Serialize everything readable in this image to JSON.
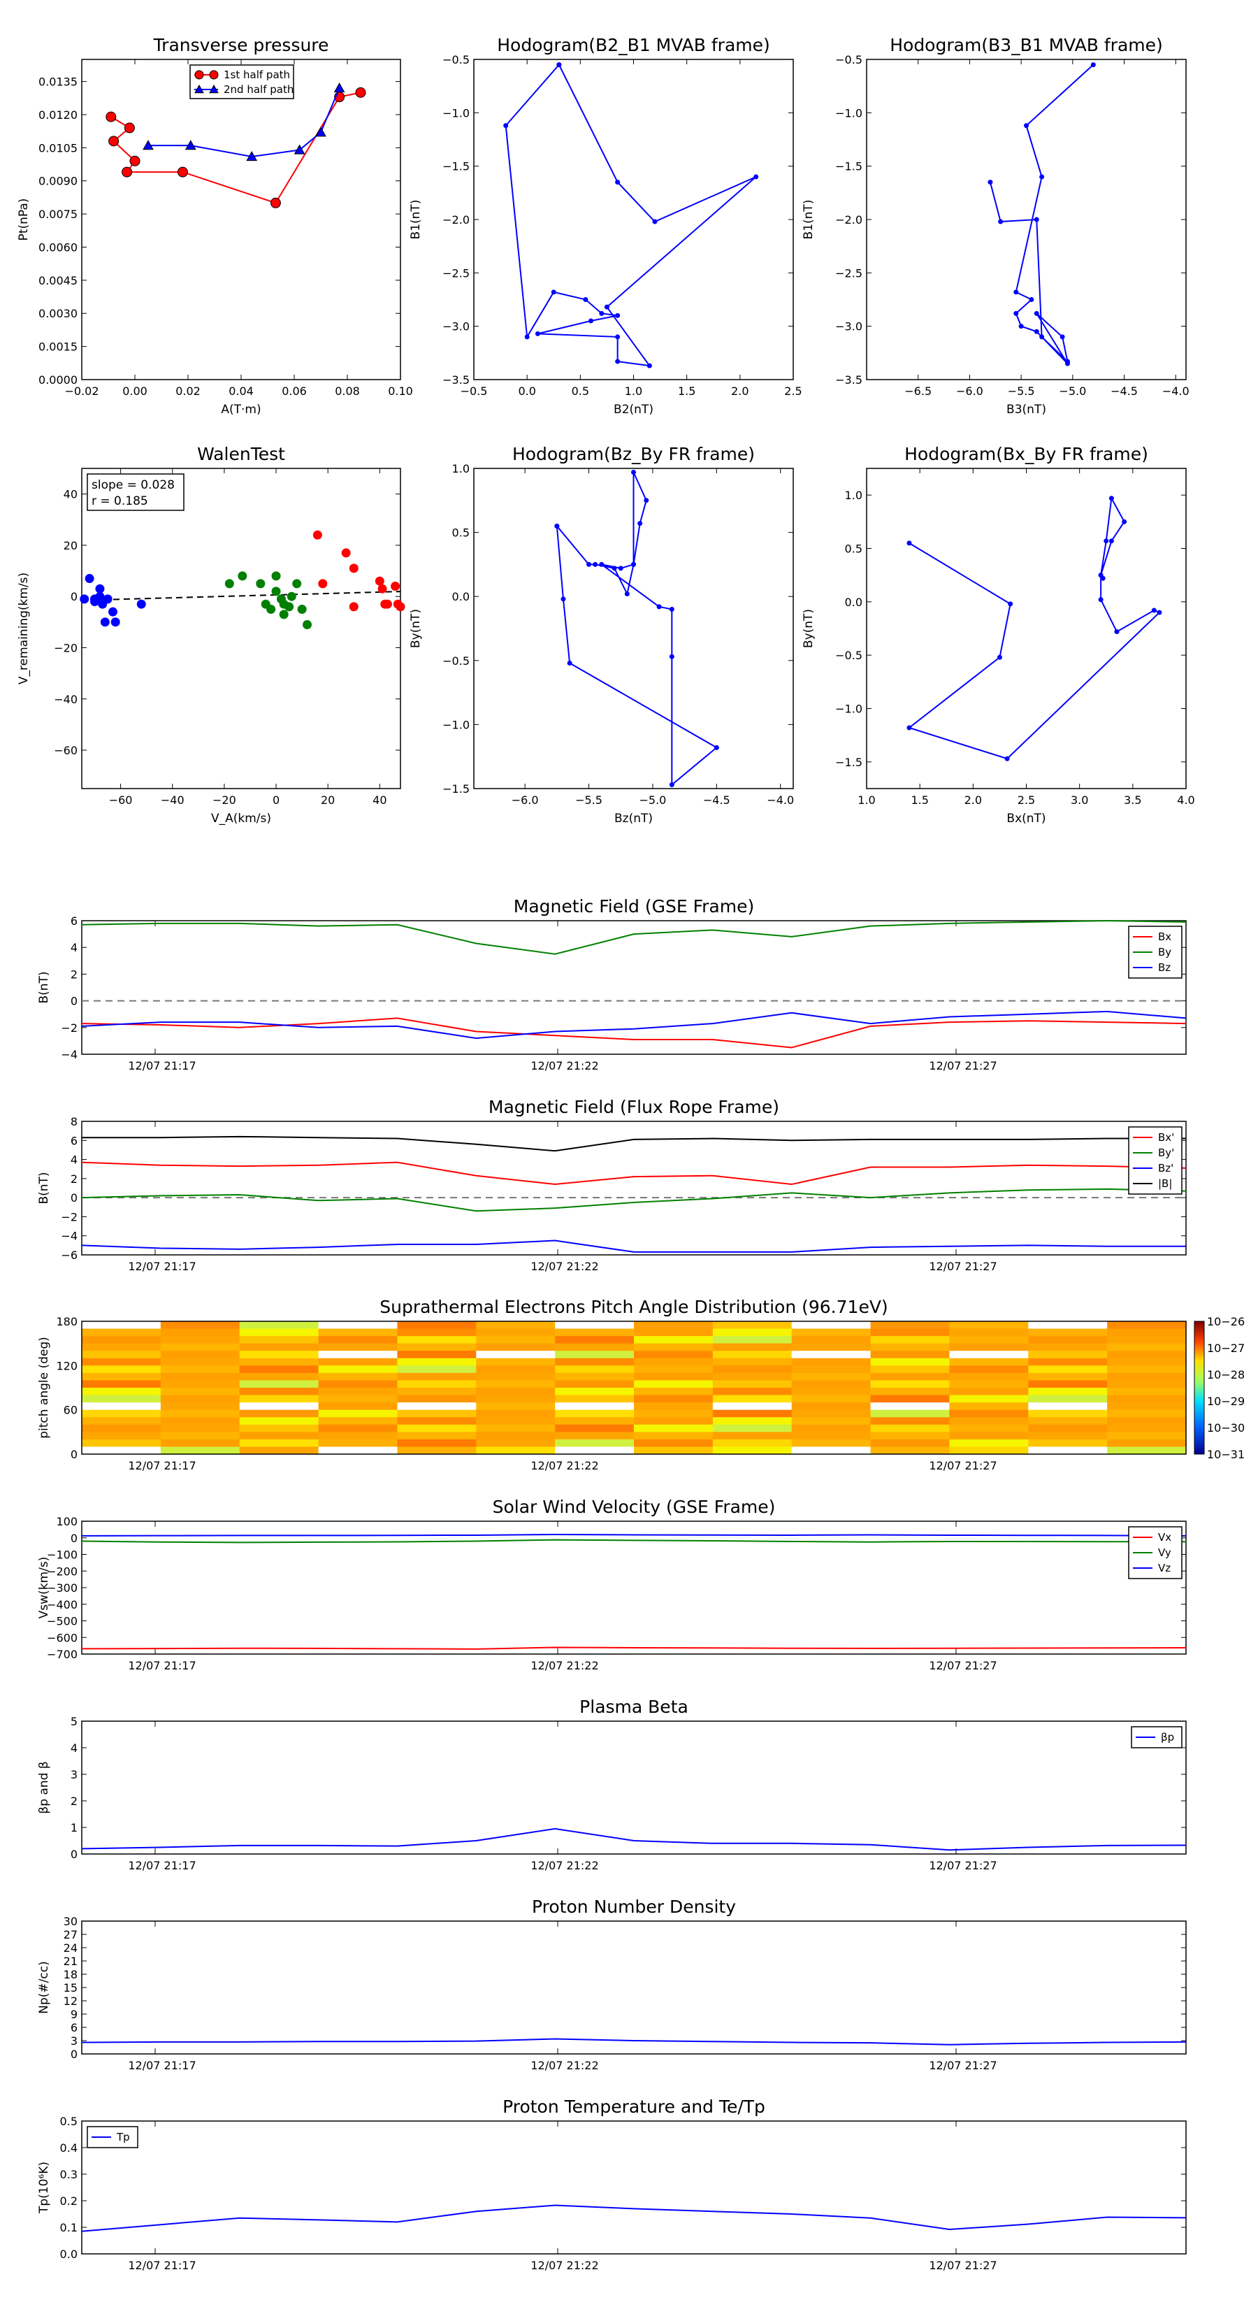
{
  "chart_data": [
    {
      "type": "line",
      "title": "Transverse pressure",
      "xlabel": "A(T·m)",
      "ylabel": "Pt(nPa)",
      "xlim": [
        -0.02,
        0.1
      ],
      "ylim": [
        0.0,
        0.0145
      ],
      "xticks": [
        "−0.02",
        "0.00",
        "0.02",
        "0.04",
        "0.06",
        "0.08",
        "0.10"
      ],
      "yticks": [
        "0.0000",
        "0.0015",
        "0.0030",
        "0.0045",
        "0.0060",
        "0.0075",
        "0.0090",
        "0.0105",
        "0.0120",
        "0.0135"
      ],
      "legend": "top-center",
      "series": [
        {
          "name": "1st half path",
          "color": "#ff0000",
          "marker": "circle",
          "x": [
            0.085,
            0.077,
            0.053,
            0.018,
            -0.003,
            0.0,
            -0.008,
            -0.002,
            -0.009
          ],
          "y": [
            0.013,
            0.0128,
            0.008,
            0.0094,
            0.0094,
            0.0099,
            0.0108,
            0.0114,
            0.0119
          ]
        },
        {
          "name": "2nd half path",
          "color": "#0000ff",
          "marker": "triangle",
          "x": [
            0.077,
            0.07,
            0.062,
            0.044,
            0.021,
            0.005
          ],
          "y": [
            0.0132,
            0.0112,
            0.0104,
            0.0101,
            0.0106,
            0.0106
          ]
        }
      ]
    },
    {
      "type": "line",
      "title": "Hodogram(B2_B1 MVAB frame)",
      "xlabel": "B2(nT)",
      "ylabel": "B1(nT)",
      "xlim": [
        -0.5,
        2.5
      ],
      "ylim": [
        -3.5,
        -0.5
      ],
      "xticks": [
        "−0.5",
        "0.0",
        "0.5",
        "1.0",
        "1.5",
        "2.0",
        "2.5"
      ],
      "yticks": [
        "−3.5",
        "−3.0",
        "−2.5",
        "−2.0",
        "−1.5",
        "−1.0",
        "−0.5"
      ],
      "series": [
        {
          "color": "#0000ff",
          "x": [
            0.3,
            -0.2,
            0.0,
            0.25,
            0.55,
            0.7,
            0.85,
            0.6,
            0.1,
            0.85,
            0.85,
            1.15,
            0.75,
            2.15,
            1.2,
            0.85,
            0.3
          ],
          "y": [
            -0.55,
            -1.12,
            -3.1,
            -2.68,
            -2.75,
            -2.88,
            -2.9,
            -2.95,
            -3.07,
            -3.1,
            -3.33,
            -3.37,
            -2.82,
            -1.6,
            -2.02,
            -1.65,
            -0.55
          ]
        }
      ]
    },
    {
      "type": "line",
      "title": "Hodogram(B3_B1 MVAB frame)",
      "xlabel": "B3(nT)",
      "ylabel": "B1(nT)",
      "xlim": [
        -7.0,
        -3.9
      ],
      "ylim": [
        -3.5,
        -0.5
      ],
      "xticks": [
        "−6.5",
        "−6.0",
        "−5.5",
        "−5.0",
        "−4.5",
        "−4.0"
      ],
      "yticks": [
        "−3.5",
        "−3.0",
        "−2.5",
        "−2.0",
        "−1.5",
        "−1.0",
        "−0.5"
      ],
      "series": [
        {
          "color": "#0000ff",
          "x": [
            -4.8,
            -5.45,
            -5.3,
            -5.55,
            -5.4,
            -5.55,
            -5.5,
            -5.35,
            -5.05,
            -5.35,
            -5.1,
            -5.05,
            -5.3,
            -5.35,
            -5.7,
            -5.8
          ],
          "y": [
            -0.55,
            -1.12,
            -1.6,
            -2.68,
            -2.75,
            -2.88,
            -3.0,
            -3.05,
            -3.35,
            -2.88,
            -3.1,
            -3.33,
            -3.1,
            -2.0,
            -2.02,
            -1.65
          ]
        }
      ]
    },
    {
      "type": "scatter",
      "title": "WalenTest",
      "xlabel": "V_A(km/s)",
      "ylabel": "V_remaining(km/s)",
      "xlim": [
        -75,
        48
      ],
      "ylim": [
        -75,
        50
      ],
      "xticks": [
        "−60",
        "−40",
        "−20",
        "0",
        "20",
        "40"
      ],
      "yticks": [
        "−60",
        "−40",
        "−20",
        "0",
        "20",
        "40"
      ],
      "annotation": [
        "slope = 0.028",
        "r = 0.185"
      ],
      "fit": {
        "slope": 0.028,
        "intercept": 0.6
      },
      "series": [
        {
          "color": "#0000ff",
          "x": [
            -74,
            -72,
            -70,
            -70,
            -68,
            -68,
            -67,
            -66,
            -65,
            -63,
            -62,
            -52
          ],
          "y": [
            -1,
            7,
            -2,
            -1,
            0,
            3,
            -3,
            -10,
            -1,
            -6,
            -10,
            -3
          ]
        },
        {
          "color": "#008000",
          "x": [
            -18,
            -13,
            -6,
            -4,
            -2,
            0,
            0,
            2,
            3,
            3,
            5,
            6,
            8,
            10,
            12
          ],
          "y": [
            5,
            8,
            5,
            -3,
            -5,
            2,
            8,
            -1,
            -3,
            -7,
            -4,
            0,
            5,
            -5,
            -11
          ]
        },
        {
          "color": "#ff0000",
          "x": [
            16,
            18,
            27,
            30,
            30,
            40,
            41,
            42,
            43,
            46,
            47,
            48
          ],
          "y": [
            24,
            5,
            17,
            11,
            -4,
            6,
            3,
            -3,
            -3,
            4,
            -3,
            -4
          ]
        }
      ]
    },
    {
      "type": "line",
      "title": "Hodogram(Bz_By FR frame)",
      "xlabel": "Bz(nT)",
      "ylabel": "By(nT)",
      "xlim": [
        -6.4,
        -3.9
      ],
      "ylim": [
        -1.5,
        1.0
      ],
      "xticks": [
        "−6.0",
        "−5.5",
        "−5.0",
        "−4.5",
        "−4.0"
      ],
      "yticks": [
        "−1.5",
        "−1.0",
        "−0.5",
        "0.0",
        "0.5",
        "1.0"
      ],
      "series": [
        {
          "color": "#0000ff",
          "x": [
            -5.75,
            -5.7,
            -5.65,
            -4.5,
            -4.85,
            -4.85,
            -4.85,
            -4.95,
            -5.4,
            -5.25,
            -5.15,
            -5.1,
            -5.05,
            -5.15,
            -5.15,
            -5.2,
            -5.3,
            -5.45,
            -5.5,
            -5.75
          ],
          "y": [
            0.55,
            -0.02,
            -0.52,
            -1.18,
            -1.47,
            -0.47,
            -0.1,
            -0.08,
            0.25,
            0.22,
            0.25,
            0.57,
            0.75,
            0.97,
            0.25,
            0.02,
            0.22,
            0.25,
            0.25,
            0.55
          ]
        }
      ]
    },
    {
      "type": "line",
      "title": "Hodogram(Bx_By FR frame)",
      "xlabel": "Bx(nT)",
      "ylabel": "By(nT)",
      "xlim": [
        1.0,
        4.0
      ],
      "ylim": [
        -1.75,
        1.25
      ],
      "xticks": [
        "1.0",
        "1.5",
        "2.0",
        "2.5",
        "3.0",
        "3.5",
        "4.0"
      ],
      "yticks": [
        "−1.5",
        "−1.0",
        "−0.5",
        "0.0",
        "0.5",
        "1.0"
      ],
      "series": [
        {
          "color": "#0000ff",
          "x": [
            1.4,
            2.35,
            2.25,
            1.4,
            2.32,
            3.75,
            3.7,
            3.35,
            3.2,
            3.2,
            3.25,
            3.3,
            3.42,
            3.3,
            3.2,
            3.22
          ],
          "y": [
            0.55,
            -0.02,
            -0.52,
            -1.18,
            -1.47,
            -0.1,
            -0.08,
            -0.28,
            0.02,
            0.25,
            0.57,
            0.97,
            0.75,
            0.57,
            0.25,
            0.22
          ]
        }
      ]
    },
    {
      "type": "line",
      "title": "Magnetic Field (GSE Frame)",
      "ylabel": "B(nT)",
      "ylim": [
        -4,
        6
      ],
      "yticks": [
        "−4",
        "−2",
        "0",
        "2",
        "4",
        "6"
      ],
      "xticks": [
        "12/07 21:17",
        "12/07 21:22",
        "12/07 21:27"
      ],
      "legend": "right",
      "zero_line": true,
      "series": [
        {
          "name": "Bx",
          "color": "#ff0000",
          "values": [
            -1.7,
            -1.8,
            -2.0,
            -1.7,
            -1.3,
            -2.3,
            -2.6,
            -2.9,
            -2.9,
            -3.5,
            -1.9,
            -1.6,
            -1.5,
            -1.6,
            -1.7
          ]
        },
        {
          "name": "By",
          "color": "#008000",
          "values": [
            5.7,
            5.8,
            5.8,
            5.6,
            5.7,
            4.3,
            3.5,
            5.0,
            5.3,
            4.8,
            5.6,
            5.8,
            5.9,
            6.0,
            5.9
          ]
        },
        {
          "name": "Bz",
          "color": "#0000ff",
          "values": [
            -1.9,
            -1.6,
            -1.6,
            -2.0,
            -1.9,
            -2.8,
            -2.3,
            -2.1,
            -1.7,
            -0.9,
            -1.7,
            -1.2,
            -1.0,
            -0.8,
            -1.3
          ]
        }
      ]
    },
    {
      "type": "line",
      "title": "Magnetic Field (Flux Rope Frame)",
      "ylabel": "B(nT)",
      "ylim": [
        -6,
        8
      ],
      "yticks": [
        "−6",
        "−4",
        "−2",
        "0",
        "2",
        "4",
        "6",
        "8"
      ],
      "xticks": [
        "12/07 21:17",
        "12/07 21:22",
        "12/07 21:27"
      ],
      "legend": "right",
      "zero_line": true,
      "series": [
        {
          "name": "Bx'",
          "color": "#ff0000",
          "values": [
            3.7,
            3.4,
            3.3,
            3.4,
            3.7,
            2.3,
            1.4,
            2.2,
            2.3,
            1.4,
            3.2,
            3.2,
            3.4,
            3.3,
            3.1
          ]
        },
        {
          "name": "By'",
          "color": "#008000",
          "values": [
            0.0,
            0.2,
            0.3,
            -0.3,
            -0.1,
            -1.4,
            -1.1,
            -0.5,
            -0.1,
            0.5,
            0.0,
            0.5,
            0.8,
            0.9,
            0.7
          ]
        },
        {
          "name": "Bz'",
          "color": "#0000ff",
          "values": [
            -5.0,
            -5.3,
            -5.4,
            -5.2,
            -4.9,
            -4.9,
            -4.5,
            -5.7,
            -5.7,
            -5.7,
            -5.2,
            -5.1,
            -5.0,
            -5.1,
            -5.1
          ]
        },
        {
          "name": "|B|",
          "color": "#000000",
          "values": [
            6.3,
            6.3,
            6.4,
            6.3,
            6.2,
            5.6,
            4.9,
            6.1,
            6.2,
            6.0,
            6.1,
            6.1,
            6.1,
            6.2,
            6.2
          ]
        }
      ]
    },
    {
      "type": "heatmap",
      "title": "Suprathermal Electrons Pitch Angle Distribution (96.71eV)",
      "ylabel": "pitch angle (deg)",
      "ylim": [
        0,
        180
      ],
      "yticks": [
        "0",
        "60",
        "120",
        "180"
      ],
      "xticks": [
        "12/07 21:17",
        "12/07 21:22",
        "12/07 21:27"
      ],
      "colorbar_ticks": [
        "10−26",
        "10−27",
        "10−28",
        "10−29",
        "10−30",
        "10−31"
      ],
      "columns": 14,
      "rows": 18
    },
    {
      "type": "line",
      "title": "Solar Wind Velocity (GSE Frame)",
      "ylabel": "Vsw(km/s)",
      "ylim": [
        -700,
        100
      ],
      "yticks": [
        "−700",
        "−600",
        "−500",
        "−400",
        "−300",
        "−200",
        "−100",
        "0",
        "100"
      ],
      "xticks": [
        "12/07 21:17",
        "12/07 21:22",
        "12/07 21:27"
      ],
      "legend": "right",
      "series": [
        {
          "name": "Vx",
          "color": "#ff0000",
          "values": [
            -668,
            -667,
            -665,
            -666,
            -668,
            -670,
            -660,
            -662,
            -663,
            -665,
            -666,
            -665,
            -664,
            -663,
            -662
          ]
        },
        {
          "name": "Vy",
          "color": "#008000",
          "values": [
            -20,
            -25,
            -28,
            -26,
            -24,
            -20,
            -12,
            -15,
            -18,
            -22,
            -25,
            -22,
            -22,
            -23,
            -23
          ]
        },
        {
          "name": "Vz",
          "color": "#0000ff",
          "values": [
            12,
            13,
            14,
            14,
            15,
            16,
            20,
            18,
            17,
            16,
            18,
            16,
            15,
            14,
            12
          ]
        }
      ]
    },
    {
      "type": "line",
      "title": "Plasma Beta",
      "ylabel": "βp and β",
      "ylim": [
        0,
        5
      ],
      "yticks": [
        "0",
        "1",
        "2",
        "3",
        "4",
        "5"
      ],
      "xticks": [
        "12/07 21:17",
        "12/07 21:22",
        "12/07 21:27"
      ],
      "legend": "top-right",
      "series": [
        {
          "name": "βp",
          "color": "#0000ff",
          "values": [
            0.2,
            0.25,
            0.32,
            0.32,
            0.3,
            0.5,
            0.95,
            0.5,
            0.4,
            0.4,
            0.35,
            0.15,
            0.25,
            0.32,
            0.33
          ]
        }
      ]
    },
    {
      "type": "line",
      "title": "Proton Number Density",
      "ylabel": "Np(#/cc)",
      "ylim": [
        0,
        30
      ],
      "yticks": [
        "0",
        "3",
        "6",
        "9",
        "12",
        "15",
        "18",
        "21",
        "24",
        "27",
        "30"
      ],
      "xticks": [
        "12/07 21:17",
        "12/07 21:22",
        "12/07 21:27"
      ],
      "series": [
        {
          "color": "#0000ff",
          "values": [
            2.6,
            2.7,
            2.7,
            2.8,
            2.8,
            2.9,
            3.4,
            3.0,
            2.8,
            2.6,
            2.5,
            2.1,
            2.4,
            2.6,
            2.7
          ]
        }
      ]
    },
    {
      "type": "line",
      "title": "Proton Temperature and Te/Tp",
      "ylabel": "Tp(10⁶K)",
      "ylim": [
        0,
        0.5
      ],
      "yticks": [
        "0.0",
        "0.1",
        "0.2",
        "0.3",
        "0.4",
        "0.5"
      ],
      "xticks": [
        "12/07 21:17",
        "12/07 21:22",
        "12/07 21:27"
      ],
      "legend": "top-left",
      "series": [
        {
          "name": "Tp",
          "color": "#0000ff",
          "values": [
            0.085,
            0.11,
            0.135,
            0.128,
            0.12,
            0.16,
            0.183,
            0.17,
            0.16,
            0.15,
            0.135,
            0.092,
            0.112,
            0.138,
            0.136
          ]
        }
      ]
    }
  ]
}
